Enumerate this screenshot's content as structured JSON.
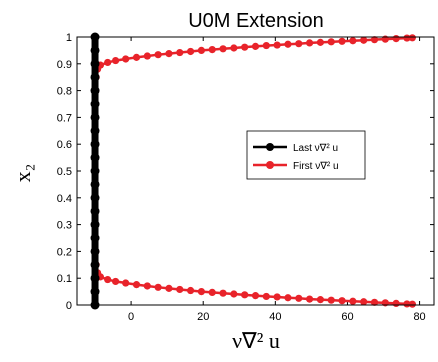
{
  "chart_data": {
    "type": "line",
    "title": "U0M Extension",
    "xlabel": "ν∇² u",
    "ylabel": "x₂",
    "xlim": [
      -15,
      84
    ],
    "ylim": [
      0,
      1
    ],
    "x_ticks": [
      0,
      20,
      40,
      60,
      80
    ],
    "x_tick_labels": [
      "0",
      "20",
      "40",
      "60",
      "80"
    ],
    "y_ticks": [
      0,
      0.1,
      0.2,
      0.3,
      0.4,
      0.5,
      0.6,
      0.7,
      0.8,
      0.9,
      1
    ],
    "y_tick_labels": [
      "0",
      "0.1",
      "0.2",
      "0.3",
      "0.4",
      "0.5",
      "0.6",
      "0.7",
      "0.8",
      "0.9",
      "1"
    ],
    "grid": false,
    "legend_position": "center-right",
    "legend": [
      "Last ν∇² u",
      "First ν∇² u"
    ],
    "series": [
      {
        "name": "Last ν∇² u",
        "color": "#000000",
        "marker": "circle",
        "points": [
          [
            -10,
            0
          ],
          [
            -10,
            0.05
          ],
          [
            -10,
            0.1
          ],
          [
            -10,
            0.15
          ],
          [
            -10,
            0.2
          ],
          [
            -10,
            0.25
          ],
          [
            -10,
            0.3
          ],
          [
            -10,
            0.35
          ],
          [
            -10,
            0.4
          ],
          [
            -10,
            0.45
          ],
          [
            -10,
            0.5
          ],
          [
            -10,
            0.55
          ],
          [
            -10,
            0.6
          ],
          [
            -10,
            0.65
          ],
          [
            -10,
            0.7
          ],
          [
            -10,
            0.75
          ],
          [
            -10,
            0.8
          ],
          [
            -10,
            0.85
          ],
          [
            -10,
            0.9
          ],
          [
            -10,
            0.95
          ],
          [
            -10,
            1
          ]
        ]
      },
      {
        "name": "First ν∇² u",
        "color": "#e8232a",
        "marker": "circle",
        "points": [
          [
            -10,
            0.25
          ],
          [
            -10,
            0.3
          ],
          [
            -10,
            0.35
          ],
          [
            -10,
            0.4
          ],
          [
            -10,
            0.45
          ],
          [
            -10,
            0.5
          ],
          [
            -10,
            0.55
          ],
          [
            -10,
            0.6
          ],
          [
            -10,
            0.65
          ],
          [
            -10,
            0.7
          ],
          [
            -10,
            0.75
          ],
          [
            -9.8,
            0.8
          ],
          [
            -9.7,
            0.85
          ],
          [
            -9.3,
            0.88
          ],
          [
            -8.5,
            0.895
          ],
          [
            -6.5,
            0.905
          ],
          [
            -4.3,
            0.912
          ],
          [
            -1.5,
            0.918
          ],
          [
            1.5,
            0.924
          ],
          [
            4.5,
            0.929
          ],
          [
            7.5,
            0.934
          ],
          [
            10.5,
            0.938
          ],
          [
            13.5,
            0.942
          ],
          [
            16.5,
            0.946
          ],
          [
            19.5,
            0.95
          ],
          [
            22.5,
            0.953
          ],
          [
            25.5,
            0.956
          ],
          [
            28.5,
            0.959
          ],
          [
            31.5,
            0.962
          ],
          [
            34.5,
            0.965
          ],
          [
            37.5,
            0.968
          ],
          [
            40.5,
            0.97
          ],
          [
            43.5,
            0.973
          ],
          [
            46.5,
            0.975
          ],
          [
            49.5,
            0.978
          ],
          [
            52.5,
            0.98
          ],
          [
            55.5,
            0.982
          ],
          [
            58.5,
            0.984
          ],
          [
            61.5,
            0.986
          ],
          [
            64.5,
            0.988
          ],
          [
            67.5,
            0.99
          ],
          [
            70.5,
            0.992
          ],
          [
            73.5,
            0.994
          ],
          [
            76.5,
            0.996
          ],
          [
            78,
            0.997
          ]
        ],
        "mirror_about_y": 0.5
      }
    ]
  }
}
